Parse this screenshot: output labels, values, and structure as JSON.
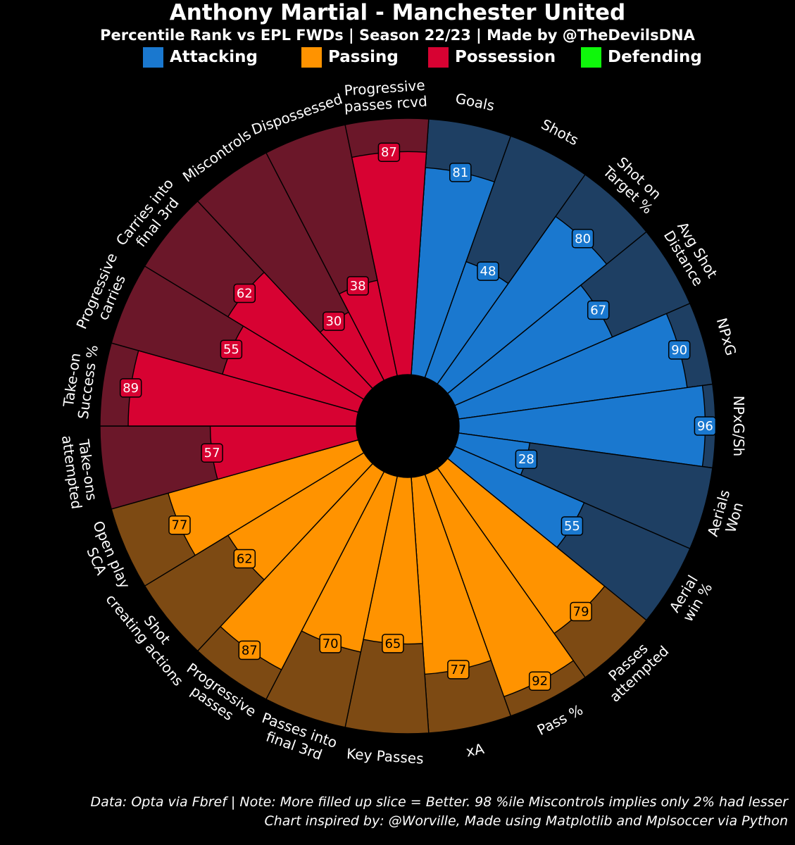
{
  "header": {
    "title": "Anthony Martial - Manchester United",
    "subtitle": "Percentile Rank vs EPL FWDs | Season 22/23 | Made by @TheDevilsDNA"
  },
  "legend": [
    {
      "label": "Attacking",
      "color": "#1a78cf"
    },
    {
      "label": "Passing",
      "color": "#ff9300"
    },
    {
      "label": "Possession",
      "color": "#d70232"
    },
    {
      "label": "Defending",
      "color": "#0ff70b"
    }
  ],
  "footer": {
    "line1": "Data: Opta via Fbref | Note: More filled up slice = Better. 98 %ile Miscontrols implies only 2% had lesser",
    "line2": "Chart inspired by: @Worville, Made using Matplotlib and Mplsoccer via Python"
  },
  "chart_data": {
    "type": "radial-bar",
    "scale": [
      0,
      100
    ],
    "groups": {
      "Attacking": {
        "fill": "#1a78cf",
        "background": "#1e3f63"
      },
      "Passing": {
        "fill": "#ff9300",
        "background": "#7d4a13"
      },
      "Possession": {
        "fill": "#d70232",
        "background": "#6b1729"
      }
    },
    "metrics": [
      {
        "label": "Goals",
        "value": 81,
        "group": "Attacking"
      },
      {
        "label": "Shots",
        "value": 48,
        "group": "Attacking"
      },
      {
        "label": "Shot on\nTarget %",
        "value": 80,
        "group": "Attacking"
      },
      {
        "label": "Avg Shot\nDistance",
        "value": 67,
        "group": "Attacking"
      },
      {
        "label": "NPxG",
        "value": 90,
        "group": "Attacking"
      },
      {
        "label": "NPxG/Sh",
        "value": 96,
        "group": "Attacking"
      },
      {
        "label": "Aerials\nWon",
        "value": 28,
        "group": "Attacking"
      },
      {
        "label": "Aerial\nwin %",
        "value": 55,
        "group": "Attacking"
      },
      {
        "label": "Passes\nattempted",
        "value": 79,
        "group": "Passing"
      },
      {
        "label": "Pass %",
        "value": 92,
        "group": "Passing"
      },
      {
        "label": "xA",
        "value": 77,
        "group": "Passing"
      },
      {
        "label": "Key Passes",
        "value": 65,
        "group": "Passing"
      },
      {
        "label": "Passes into\nfinal 3rd",
        "value": 70,
        "group": "Passing"
      },
      {
        "label": "Progressive\npasses",
        "value": 87,
        "group": "Passing"
      },
      {
        "label": "Shot\ncreating actions",
        "value": 62,
        "group": "Passing"
      },
      {
        "label": "Open play\nSCA",
        "value": 77,
        "group": "Passing"
      },
      {
        "label": "Take-ons\nattempted",
        "value": 57,
        "group": "Possession"
      },
      {
        "label": "Take-on\nSuccess %",
        "value": 89,
        "group": "Possession"
      },
      {
        "label": "Progressive\ncarries",
        "value": 55,
        "group": "Possession"
      },
      {
        "label": "Carries into\nfinal 3rd",
        "value": 62,
        "group": "Possession"
      },
      {
        "label": "Miscontrols",
        "value": 30,
        "group": "Possession"
      },
      {
        "label": "Dispossessed",
        "value": 38,
        "group": "Possession"
      },
      {
        "label": "Progressive\npasses rcvd",
        "value": 87,
        "group": "Possession"
      }
    ]
  }
}
